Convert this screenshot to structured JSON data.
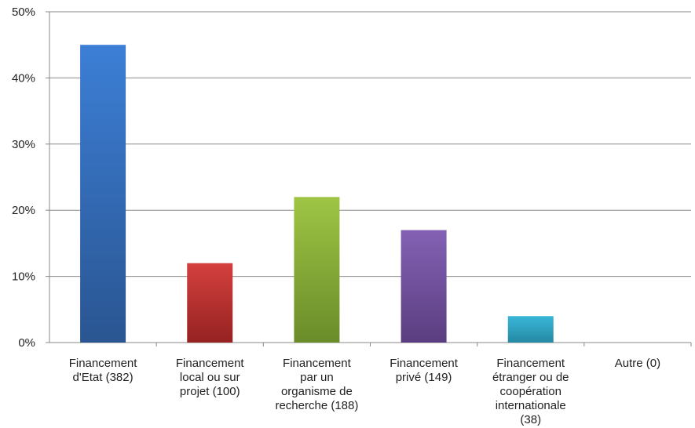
{
  "chart_data": {
    "type": "bar",
    "title": "",
    "xlabel": "",
    "ylabel": "",
    "categories": [
      [
        "Financement",
        "d'Etat (382)"
      ],
      [
        "Financement",
        "local ou sur",
        "projet (100)"
      ],
      [
        "Financement",
        "par un",
        "organisme de",
        "recherche (188)"
      ],
      [
        "Financement",
        "privé (149)"
      ],
      [
        "Financement",
        "étranger ou de",
        "coopération",
        "internationale",
        "(38)"
      ],
      [
        "Autre (0)"
      ]
    ],
    "values": [
      45,
      12,
      22,
      17,
      4,
      0
    ],
    "value_unit": "%",
    "ylim": [
      0,
      50
    ],
    "yticks": [
      "0%",
      "10%",
      "20%",
      "30%",
      "40%",
      "50%"
    ],
    "ytick_values": [
      0,
      10,
      20,
      30,
      40,
      50
    ],
    "grid": true,
    "legend": "none",
    "colors": [
      {
        "top": "#3c7fd6",
        "bottom": "#2a5591"
      },
      {
        "top": "#d4403e",
        "bottom": "#952221"
      },
      {
        "top": "#9ec544",
        "bottom": "#6a8c2a"
      },
      {
        "top": "#8461b4",
        "bottom": "#5a3e80"
      },
      {
        "top": "#39b7d8",
        "bottom": "#2489a3"
      },
      {
        "top": "#f39a3b",
        "bottom": "#c46f19"
      }
    ],
    "axis_color": "#888888",
    "grid_color": "#8a8a8a"
  }
}
